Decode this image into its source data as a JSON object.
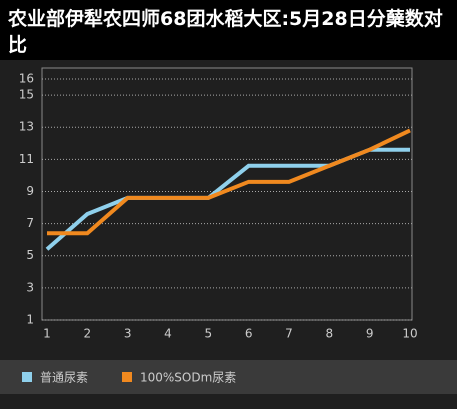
{
  "chart_data": {
    "type": "line",
    "title": "农业部伊犁农四师68团水稻大区:5月28日分蘖数对比",
    "x": [
      1,
      2,
      3,
      4,
      5,
      6,
      7,
      8,
      9,
      10
    ],
    "xlim": [
      1,
      10
    ],
    "xticks": [
      1,
      2,
      3,
      4,
      5,
      6,
      7,
      8,
      9,
      10
    ],
    "ylim": [
      1,
      16
    ],
    "yticks": [
      1,
      3,
      5,
      7,
      9,
      11,
      13,
      15,
      16
    ],
    "grid": true,
    "series": [
      {
        "name": "普通尿素",
        "color": "#8fd0ec",
        "values": [
          5.4,
          7.6,
          8.6,
          8.6,
          8.6,
          10.6,
          10.6,
          10.6,
          11.6,
          11.6
        ]
      },
      {
        "name": "100%SODm尿素",
        "color": "#f0891f",
        "values": [
          6.4,
          6.4,
          8.6,
          8.6,
          8.6,
          9.6,
          9.6,
          10.6,
          11.6,
          12.8
        ]
      }
    ]
  }
}
